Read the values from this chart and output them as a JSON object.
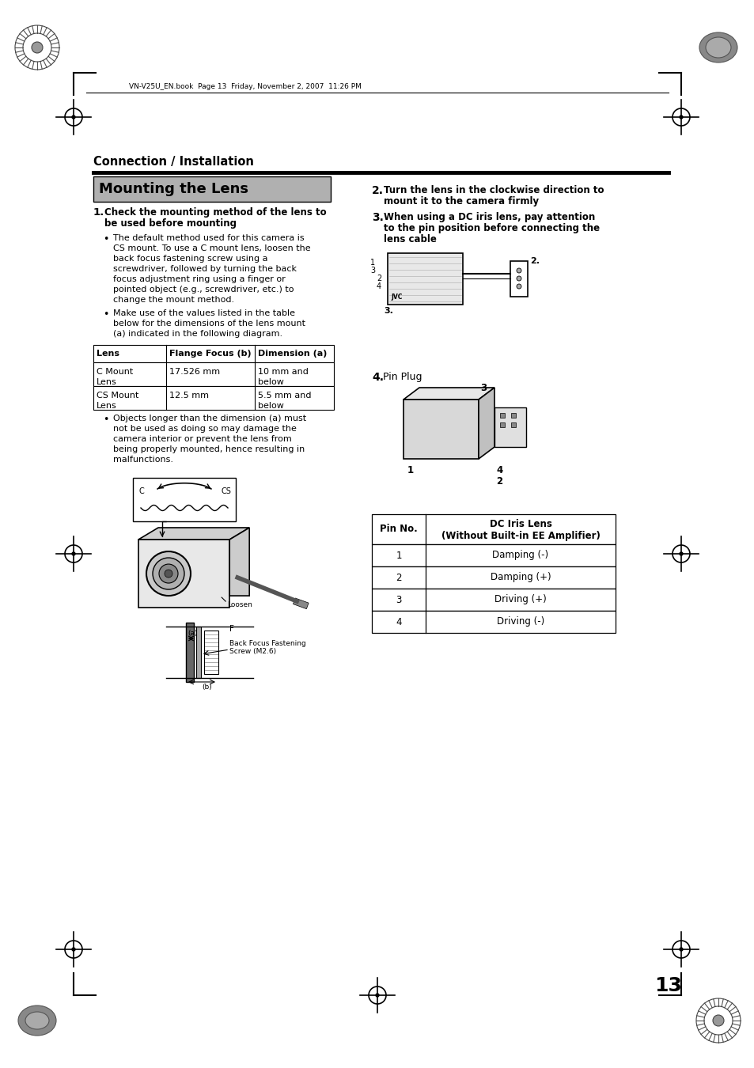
{
  "page_num": "13",
  "header_text": "VN-V25U_EN.book  Page 13  Friday, November 2, 2007  11:26 PM",
  "section_title": "Connection / Installation",
  "page_title": "Mounting the Lens",
  "step1_title": "1. Check the mounting method of the lens to\n    be used before mounting",
  "step1_bullet1_lines": [
    "The default method used for this camera is",
    "CS mount. To use a C mount lens, loosen the",
    "back focus fastening screw using a",
    "screwdriver, followed by turning the back",
    "focus adjustment ring using a finger or",
    "pointed object (e.g., screwdriver, etc.) to",
    "change the mount method."
  ],
  "step1_bullet2_lines": [
    "Make use of the values listed in the table",
    "below for the dimensions of the lens mount",
    "(a) indicated in the following diagram."
  ],
  "table1_headers": [
    "Lens",
    "Flange Focus (b)",
    "Dimension (a)"
  ],
  "table1_rows": [
    [
      "C Mount\nLens",
      "17.526 mm",
      "10 mm and\nbelow"
    ],
    [
      "CS Mount\nLens",
      "12.5 mm",
      "5.5 mm and\nbelow"
    ]
  ],
  "step1_bullet3_lines": [
    "Objects longer than the dimension (a) must",
    "not be used as doing so may damage the",
    "camera interior or prevent the lens from",
    "being properly mounted, hence resulting in",
    "malfunctions."
  ],
  "step2_bold": "2.",
  "step2_text": " Turn the lens in the clockwise direction to",
  "step2_text2": "mount it to the camera firmly",
  "step3_bold": "3.",
  "step3_text": " When using a DC iris lens, pay attention",
  "step3_text2": "to the pin position before connecting the",
  "step3_text3": "lens cable",
  "step4_title": "4.",
  "step4_text": " Pin Plug",
  "table2_headers": [
    "Pin No.",
    "DC Iris Lens\n(Without Built-in EE Amplifier)"
  ],
  "table2_rows": [
    [
      "1",
      "Damping (-)"
    ],
    [
      "2",
      "Damping (+)"
    ],
    [
      "3",
      "Driving (+)"
    ],
    [
      "4",
      "Driving (-)"
    ]
  ],
  "bg_color": "#ffffff",
  "text_color": "#000000",
  "title_bg": "#b0b0b0",
  "line_color": "#000000"
}
